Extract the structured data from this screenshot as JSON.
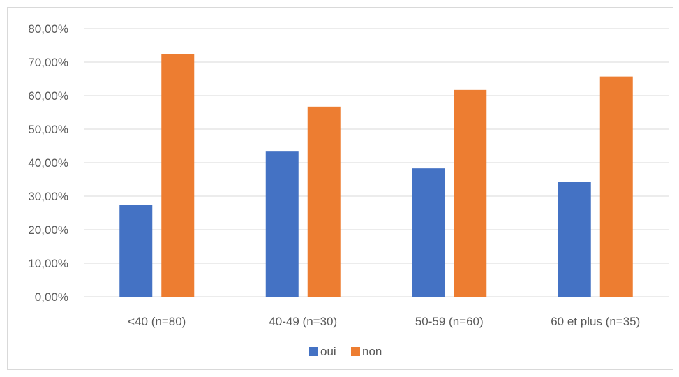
{
  "chart_data": {
    "type": "bar",
    "categories": [
      "<40 (n=80)",
      "40-49 (n=30)",
      "50-59 (n=60)",
      "60 et plus (n=35)"
    ],
    "series": [
      {
        "name": "oui",
        "values": [
          27.5,
          43.3,
          38.3,
          34.3
        ],
        "color": "#4472c4"
      },
      {
        "name": "non",
        "values": [
          72.5,
          56.7,
          61.7,
          65.7
        ],
        "color": "#ed7d31"
      }
    ],
    "ylim": [
      0,
      80
    ],
    "ytick_step": 10,
    "ytick_format": "percent-2-decimals-comma",
    "grid": true,
    "legend_position": "bottom",
    "title": "",
    "xlabel": "",
    "ylabel": ""
  }
}
